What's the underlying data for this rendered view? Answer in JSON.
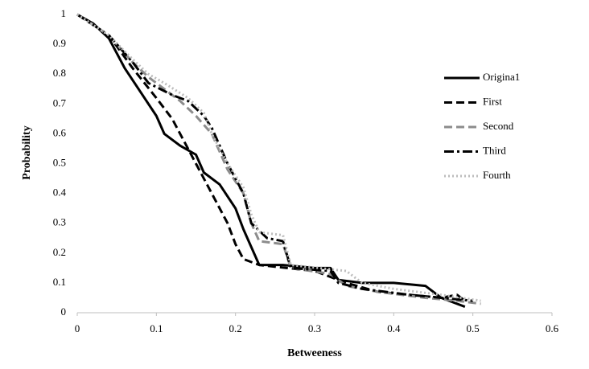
{
  "chart_data": {
    "type": "line",
    "x_label": "Betweeness",
    "y_label": "Probability",
    "xlim": [
      0,
      0.6
    ],
    "xticks": [
      0,
      0.1,
      0.2,
      0.3,
      0.4,
      0.5,
      0.6
    ],
    "ylim": [
      0,
      1
    ],
    "yticks": [
      0,
      0.1,
      0.2,
      0.3,
      0.4,
      0.5,
      0.6,
      0.7,
      0.8,
      0.9,
      1
    ],
    "grid": false,
    "legend": "right",
    "series": [
      {
        "name": "Origina1",
        "color": "#000000",
        "dash": "solid",
        "x": [
          0,
          0.02,
          0.04,
          0.06,
          0.08,
          0.1,
          0.11,
          0.13,
          0.15,
          0.16,
          0.18,
          0.2,
          0.21,
          0.22,
          0.23,
          0.26,
          0.3,
          0.32,
          0.33,
          0.36,
          0.4,
          0.44,
          0.46,
          0.48,
          0.49
        ],
        "values": [
          1,
          0.97,
          0.92,
          0.82,
          0.74,
          0.66,
          0.6,
          0.56,
          0.53,
          0.47,
          0.43,
          0.35,
          0.28,
          0.22,
          0.16,
          0.16,
          0.15,
          0.15,
          0.11,
          0.1,
          0.1,
          0.09,
          0.05,
          0.03,
          0.02
        ]
      },
      {
        "name": "First",
        "color": "#000000",
        "dash": "dashed",
        "x": [
          0,
          0.04,
          0.07,
          0.1,
          0.12,
          0.13,
          0.15,
          0.17,
          0.19,
          0.2,
          0.21,
          0.23,
          0.3,
          0.34,
          0.38,
          0.42,
          0.46,
          0.48,
          0.49
        ],
        "values": [
          1,
          0.93,
          0.82,
          0.72,
          0.65,
          0.6,
          0.5,
          0.4,
          0.3,
          0.23,
          0.18,
          0.16,
          0.14,
          0.1,
          0.07,
          0.06,
          0.05,
          0.06,
          0.04
        ]
      },
      {
        "name": "Second",
        "color": "#8c8c8c",
        "dash": "dashed",
        "x": [
          0,
          0.04,
          0.07,
          0.09,
          0.11,
          0.13,
          0.15,
          0.17,
          0.19,
          0.21,
          0.22,
          0.23,
          0.26,
          0.27,
          0.32,
          0.34,
          0.38,
          0.44,
          0.48,
          0.51
        ],
        "values": [
          1,
          0.93,
          0.84,
          0.79,
          0.75,
          0.71,
          0.66,
          0.6,
          0.48,
          0.4,
          0.3,
          0.24,
          0.23,
          0.15,
          0.13,
          0.09,
          0.07,
          0.05,
          0.04,
          0.03
        ]
      },
      {
        "name": "Third",
        "color": "#000000",
        "dash": "dashdot",
        "x": [
          0,
          0.04,
          0.07,
          0.09,
          0.12,
          0.14,
          0.16,
          0.17,
          0.19,
          0.21,
          0.22,
          0.24,
          0.26,
          0.27,
          0.32,
          0.33,
          0.36,
          0.42,
          0.46,
          0.5
        ],
        "values": [
          1,
          0.93,
          0.84,
          0.77,
          0.73,
          0.71,
          0.66,
          0.62,
          0.5,
          0.4,
          0.3,
          0.25,
          0.24,
          0.15,
          0.14,
          0.1,
          0.08,
          0.06,
          0.05,
          0.04
        ]
      },
      {
        "name": "Fourth",
        "color": "#bdbdbd",
        "dash": "dotted",
        "x": [
          0,
          0.04,
          0.07,
          0.09,
          0.11,
          0.14,
          0.16,
          0.17,
          0.19,
          0.21,
          0.22,
          0.23,
          0.26,
          0.27,
          0.34,
          0.36,
          0.4,
          0.46,
          0.51
        ],
        "values": [
          1,
          0.93,
          0.85,
          0.8,
          0.77,
          0.72,
          0.67,
          0.6,
          0.5,
          0.42,
          0.33,
          0.27,
          0.26,
          0.16,
          0.14,
          0.1,
          0.08,
          0.06,
          0.04
        ]
      }
    ]
  }
}
